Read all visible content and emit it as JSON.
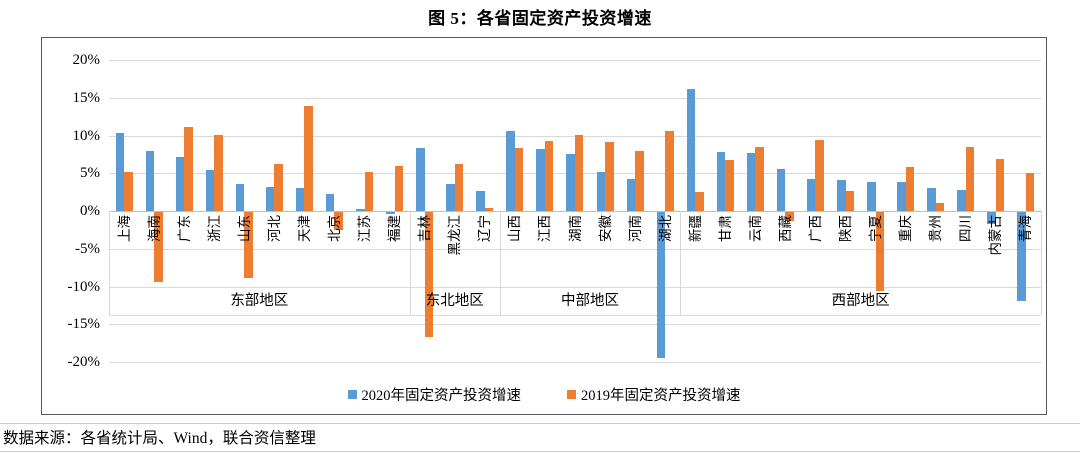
{
  "figure": {
    "title": "图 5：各省固定资产投资增速",
    "source_note": "数据来源：各省统计局、Wind，联合资信整理"
  },
  "legend": [
    {
      "label": "2020年固定资产投资增速",
      "color": "#5B9BD5"
    },
    {
      "label": "2019年固定资产投资增速",
      "color": "#ED7D31"
    }
  ],
  "chart_data": {
    "type": "bar",
    "title": "图 5：各省固定资产投资增速",
    "xlabel": "",
    "ylabel": "",
    "ylim": [
      -20,
      20
    ],
    "grid": true,
    "legend_position": "bottom",
    "y_ticks": [
      "20%",
      "15%",
      "10%",
      "5%",
      "0%",
      "-5%",
      "-10%",
      "-15%",
      "-20%"
    ],
    "colors": {
      "series_2020": "#5B9BD5",
      "series_2019": "#ED7D31",
      "gridline": "#d9d9d9",
      "zero_line": "#bfbfbf"
    },
    "categories": [
      "上海",
      "海南",
      "广东",
      "浙江",
      "山东",
      "河北",
      "天津",
      "北京",
      "江苏",
      "福建",
      "吉林",
      "黑龙江",
      "辽宁",
      "山西",
      "江西",
      "湖南",
      "安徽",
      "河南",
      "湖北",
      "新疆",
      "甘肃",
      "云南",
      "西藏",
      "广西",
      "陕西",
      "宁夏",
      "重庆",
      "贵州",
      "四川",
      "内蒙古",
      "青海"
    ],
    "regions": [
      {
        "label": "东部地区",
        "count": 10
      },
      {
        "label": "东北地区",
        "count": 3
      },
      {
        "label": "中部地区",
        "count": 6
      },
      {
        "label": "西部地区",
        "count": 12
      }
    ],
    "series": [
      {
        "name": "2020年固定资产投资增速",
        "color": "#5B9BD5",
        "values": [
          10.3,
          8.0,
          7.2,
          5.4,
          3.6,
          3.2,
          3.0,
          2.2,
          0.3,
          -0.3,
          8.3,
          3.6,
          2.6,
          10.6,
          8.2,
          7.6,
          5.1,
          4.3,
          -19.3,
          16.2,
          7.8,
          7.7,
          5.6,
          4.2,
          4.1,
          3.9,
          3.9,
          3.1,
          2.8,
          -1.6,
          -11.8
        ]
      },
      {
        "name": "2019年固定资产投资增速",
        "color": "#ED7D31",
        "values": [
          5.1,
          -9.3,
          11.1,
          10.1,
          -8.7,
          6.2,
          13.9,
          -2.4,
          5.1,
          5.9,
          -16.6,
          6.2,
          0.4,
          8.3,
          9.3,
          10.1,
          9.1,
          8.0,
          10.6,
          2.5,
          6.7,
          8.5,
          -1.2,
          9.4,
          2.6,
          -10.5,
          5.8,
          1.1,
          8.5,
          6.9,
          5.0
        ]
      }
    ]
  }
}
